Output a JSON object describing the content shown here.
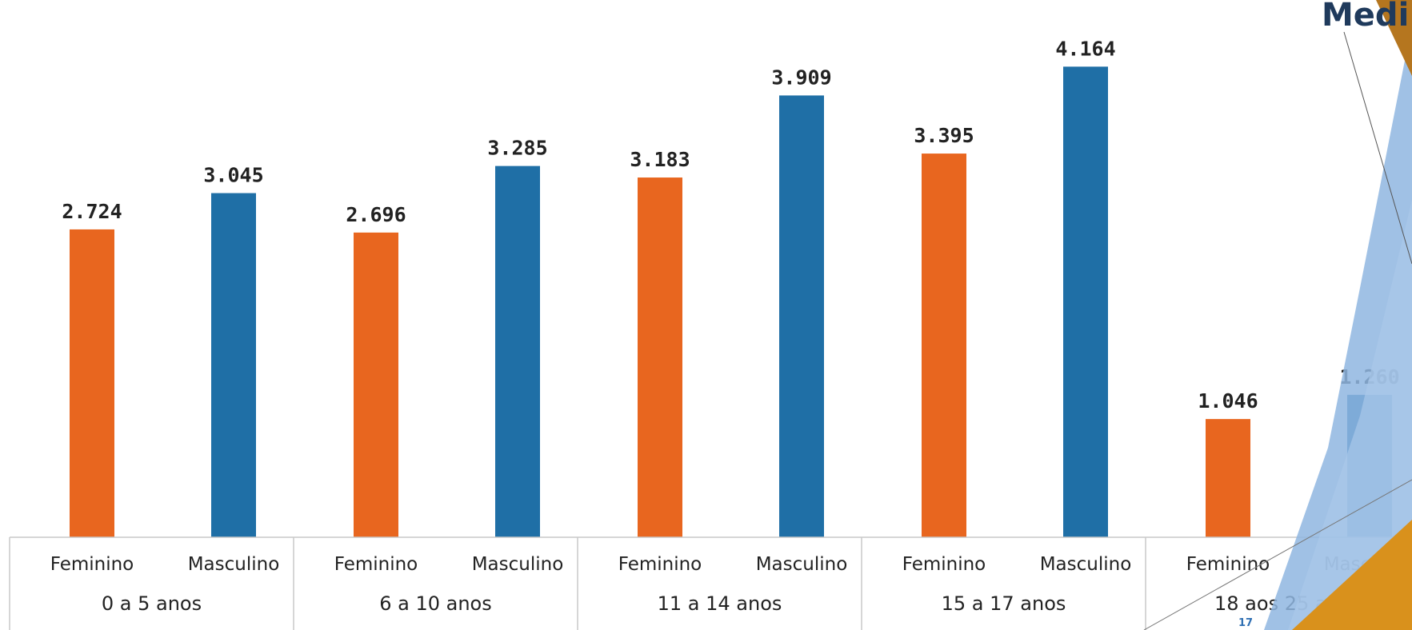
{
  "slide": {
    "title_fragment": "Medi",
    "page_number": "17"
  },
  "colors": {
    "feminino": "#e8661f",
    "masculino": "#1f6fa6",
    "axis": "#c8c8c8",
    "deco_blue": "#8fb6e0",
    "deco_orange": "#d9911c",
    "deco_brown": "#b5761f"
  },
  "chart_data": {
    "type": "bar",
    "grid": false,
    "legend": "none",
    "ylim": [
      0,
      4400
    ],
    "groups": [
      "0 a 5 anos",
      "6 a 10 anos",
      "11 a 14 anos",
      "15 a 17 anos",
      "18 aos 25 anos"
    ],
    "categories": [
      "Feminino",
      "Masculino"
    ],
    "bars": [
      {
        "group": "0 a 5 anos",
        "category": "Feminino",
        "value": 2724,
        "label": "2.724"
      },
      {
        "group": "0 a 5 anos",
        "category": "Masculino",
        "value": 3045,
        "label": "3.045"
      },
      {
        "group": "6 a 10 anos",
        "category": "Feminino",
        "value": 2696,
        "label": "2.696"
      },
      {
        "group": "6 a 10 anos",
        "category": "Masculino",
        "value": 3285,
        "label": "3.285"
      },
      {
        "group": "11 a 14 anos",
        "category": "Feminino",
        "value": 3183,
        "label": "3.183"
      },
      {
        "group": "11 a 14 anos",
        "category": "Masculino",
        "value": 3909,
        "label": "3.909"
      },
      {
        "group": "15 a 17 anos",
        "category": "Feminino",
        "value": 3395,
        "label": "3.395"
      },
      {
        "group": "15 a 17 anos",
        "category": "Masculino",
        "value": 4164,
        "label": "4.164"
      },
      {
        "group": "18 aos 25 anos",
        "category": "Feminino",
        "value": 1046,
        "label": "1.046"
      },
      {
        "group": "18 aos 25 anos",
        "category": "Masculino",
        "value": 1260,
        "label": "1.260"
      }
    ]
  }
}
